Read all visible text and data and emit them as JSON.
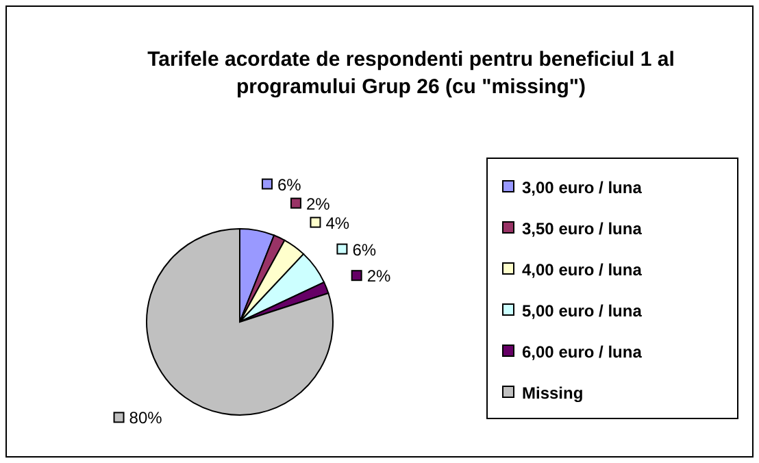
{
  "chart_data": {
    "type": "pie",
    "title": "Tarifele acordate de respondenti pentru beneficiul 1 al programului Grup 26 (cu \"missing\")",
    "categories": [
      "3,00 euro / luna",
      "3,50 euro / luna",
      "4,00 euro / luna",
      "5,00 euro / luna",
      "6,00 euro / luna",
      "Missing"
    ],
    "values": [
      6,
      2,
      4,
      6,
      2,
      80
    ],
    "value_labels": [
      "6%",
      "2%",
      "4%",
      "6%",
      "2%",
      "80%"
    ],
    "colors": [
      "#9999ff",
      "#993366",
      "#ffffcc",
      "#ccffff",
      "#660066",
      "#c0c0c0"
    ],
    "legend": "right"
  }
}
